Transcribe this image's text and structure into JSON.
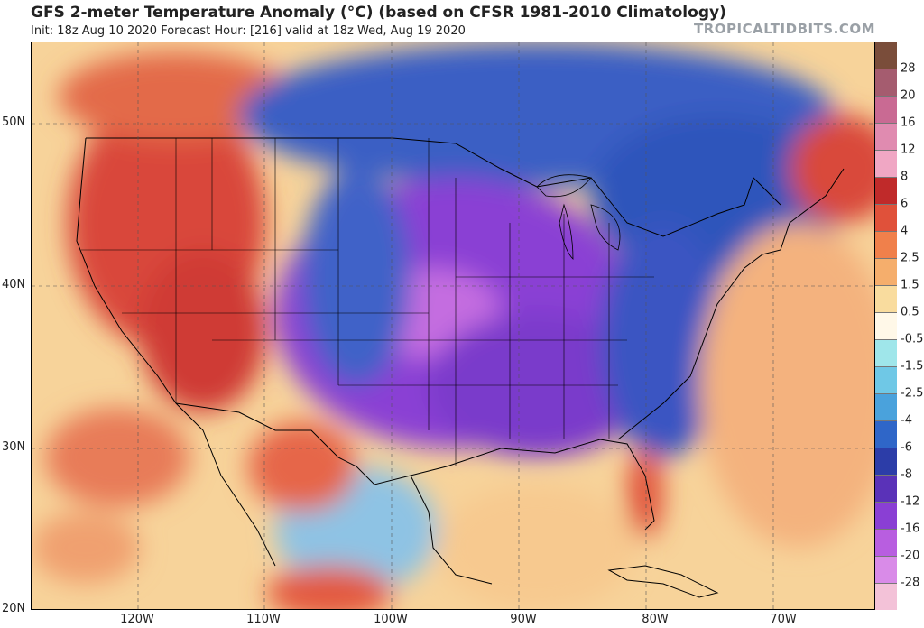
{
  "header": {
    "title": "GFS 2-meter Temperature Anomaly (°C) (based on CFSR 1981-2010 Climatology)",
    "subtitle": "Init: 18z Aug 10 2020   Forecast Hour: [216]   valid at 18z Wed, Aug 19 2020",
    "brand": "TROPICALTIDBITS.COM"
  },
  "map": {
    "lat_labels": [
      "50N",
      "40N",
      "30N",
      "20N"
    ],
    "lon_labels": [
      "120W",
      "110W",
      "100W",
      "90W",
      "80W",
      "70W"
    ]
  },
  "colorbar": {
    "labels": [
      "28",
      "20",
      "16",
      "12",
      "8",
      "6",
      "4",
      "2.5",
      "1.5",
      "0.5",
      "-0.5",
      "-1.5",
      "-2.5",
      "-4",
      "-6",
      "-8",
      "-12",
      "-16",
      "-20",
      "-28"
    ],
    "colors": [
      "#7a4d3a",
      "#a55c6f",
      "#c96a93",
      "#e08bb0",
      "#f0a7c4",
      "#c02a2a",
      "#e0513a",
      "#f0804b",
      "#f5ae6c",
      "#f9dc9e",
      "#fff8e8",
      "#9fe6ea",
      "#6fc8e6",
      "#4aa2dc",
      "#2f66c8",
      "#2c3da8",
      "#5a32b8",
      "#8a3fd4",
      "#b85ee0",
      "#d98be8",
      "#f3c2d8"
    ]
  }
}
